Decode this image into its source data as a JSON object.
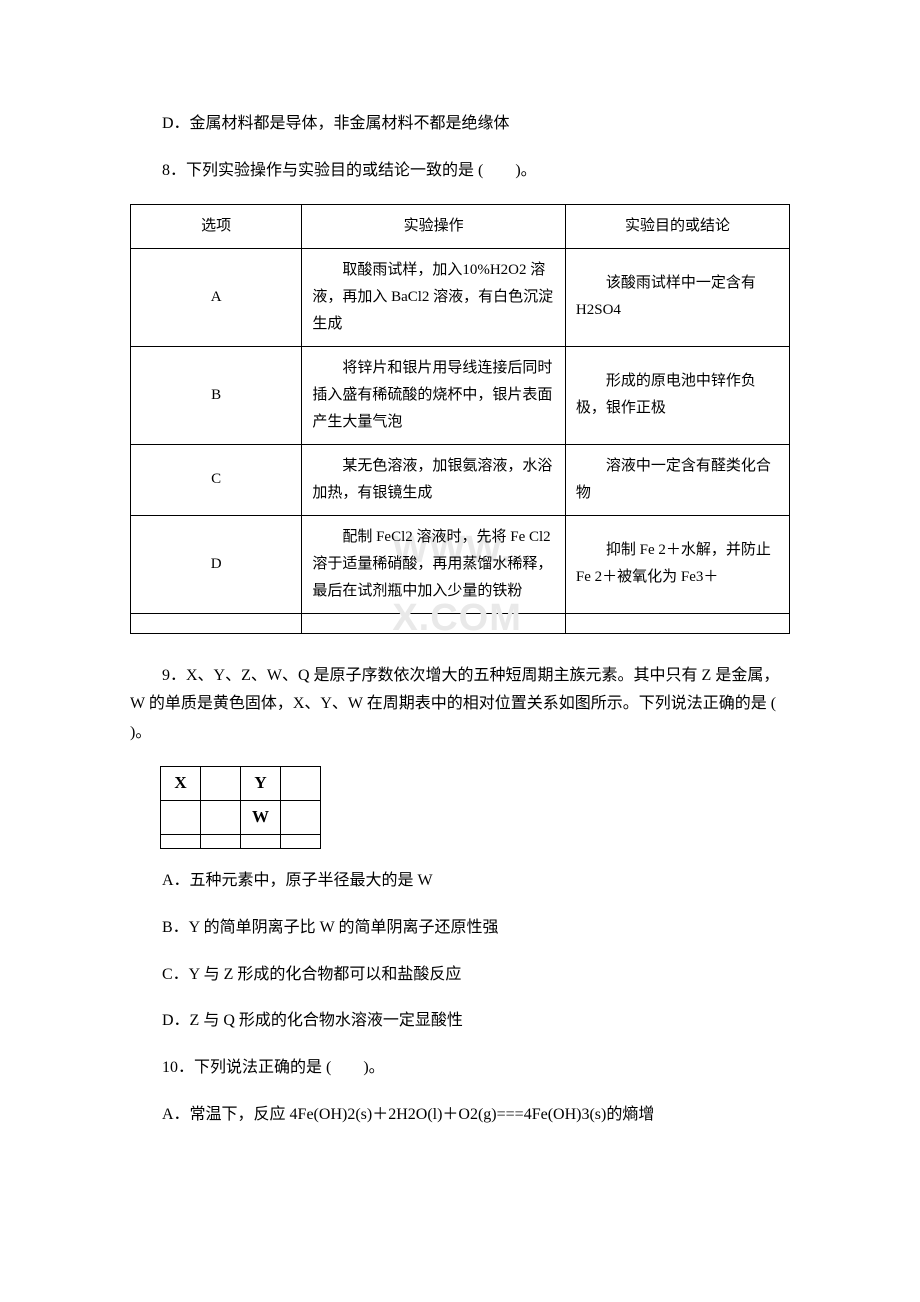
{
  "q7": {
    "optD": "D．金属材料都是导体，非金属材料不都是绝缘体"
  },
  "q8": {
    "stem": "8．下列实验操作与实验目的或结论一致的是 (　　)。",
    "headers": {
      "c1": "选项",
      "c2": "实验操作",
      "c3": "实验目的或结论"
    },
    "rows": [
      {
        "opt": "A",
        "op": "取酸雨试样，加入10%H2O2 溶液，再加入 BaCl2 溶液，有白色沉淀生成",
        "conc": "该酸雨试样中一定含有 H2SO4"
      },
      {
        "opt": "B",
        "op": "将锌片和银片用导线连接后同时插入盛有稀硫酸的烧杯中，银片表面产生大量气泡",
        "conc": "形成的原电池中锌作负极，银作正极"
      },
      {
        "opt": "C",
        "op": "某无色溶液，加银氨溶液，水浴加热，有银镜生成",
        "conc": "溶液中一定含有醛类化合物"
      },
      {
        "opt": "D",
        "op": "配制 FeCl2 溶液时，先将 Fe Cl2 溶于适量稀硝酸，再用蒸馏水稀释，最后在试剂瓶中加入少量的铁粉",
        "conc": "抑制 Fe 2＋水解，并防止 Fe 2＋被氧化为 Fe3＋"
      }
    ]
  },
  "q9": {
    "stem": "9．X、Y、Z、W、Q 是原子序数依次增大的五种短周期主族元素。其中只有 Z 是金属，W 的单质是黄色固体，X、Y、W 在周期表中的相对位置关系如图所示。下列说法正确的是 ( )。",
    "grid": {
      "r1c1": "X",
      "r1c3": "Y",
      "r2c3": "W"
    },
    "optA": "A．五种元素中，原子半径最大的是 W",
    "optB": "B．Y 的简单阴离子比 W 的简单阴离子还原性强",
    "optC": "C．Y 与 Z 形成的化合物都可以和盐酸反应",
    "optD": "D．Z 与 Q 形成的化合物水溶液一定显酸性"
  },
  "q10": {
    "stem": "10．下列说法正确的是 (　　)。",
    "optA": "A．常温下，反应 4Fe(OH)2(s)＋2H2O(l)＋O2(g)===4Fe(OH)3(s)的熵增"
  },
  "watermark": "WWW.                X.COM"
}
